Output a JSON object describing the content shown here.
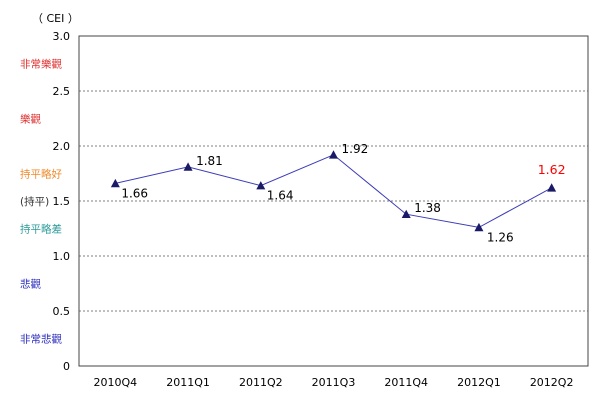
{
  "chart_data": {
    "type": "line",
    "unit_label": "（ CEI ）",
    "categories": [
      "2010Q4",
      "2011Q1",
      "2011Q2",
      "2011Q3",
      "2011Q4",
      "2012Q1",
      "2012Q2"
    ],
    "series": [
      {
        "values": [
          1.66,
          1.81,
          1.64,
          1.92,
          1.38,
          1.26,
          1.62
        ]
      }
    ],
    "data_labels": [
      "1.66",
      "1.81",
      "1.64",
      "1.92",
      "1.38",
      "1.26",
      "1.62"
    ],
    "highlight_label_color": "#ff0000",
    "ylim": [
      0,
      3.0
    ],
    "yticks": [
      {
        "value": 0,
        "label": "0"
      },
      {
        "value": 0.5,
        "label": "0.5"
      },
      {
        "value": 1.0,
        "label": "1.0"
      },
      {
        "value": 1.5,
        "label": "1.5"
      },
      {
        "value": 2.0,
        "label": "2.0"
      },
      {
        "value": 2.5,
        "label": "2.5"
      },
      {
        "value": 3.0,
        "label": "3.0"
      }
    ],
    "grid": "dashed-horizontal",
    "line_color": "#3b3bb8",
    "marker": "triangle",
    "marker_color": "#1a1a66",
    "sentiment_labels": [
      {
        "value": 2.75,
        "text": "非常樂觀",
        "color": "#e03030"
      },
      {
        "value": 2.25,
        "text": "樂觀",
        "color": "#e03030"
      },
      {
        "value": 1.75,
        "text": "持平略好",
        "color": "#ee8a2a"
      },
      {
        "value": 1.5,
        "text": "(持平)",
        "color": "#333333"
      },
      {
        "value": 1.25,
        "text": "持平略差",
        "color": "#2a9a9a"
      },
      {
        "value": 0.75,
        "text": "悲觀",
        "color": "#3030c0"
      },
      {
        "value": 0.25,
        "text": "非常悲觀",
        "color": "#3030c0"
      }
    ]
  }
}
